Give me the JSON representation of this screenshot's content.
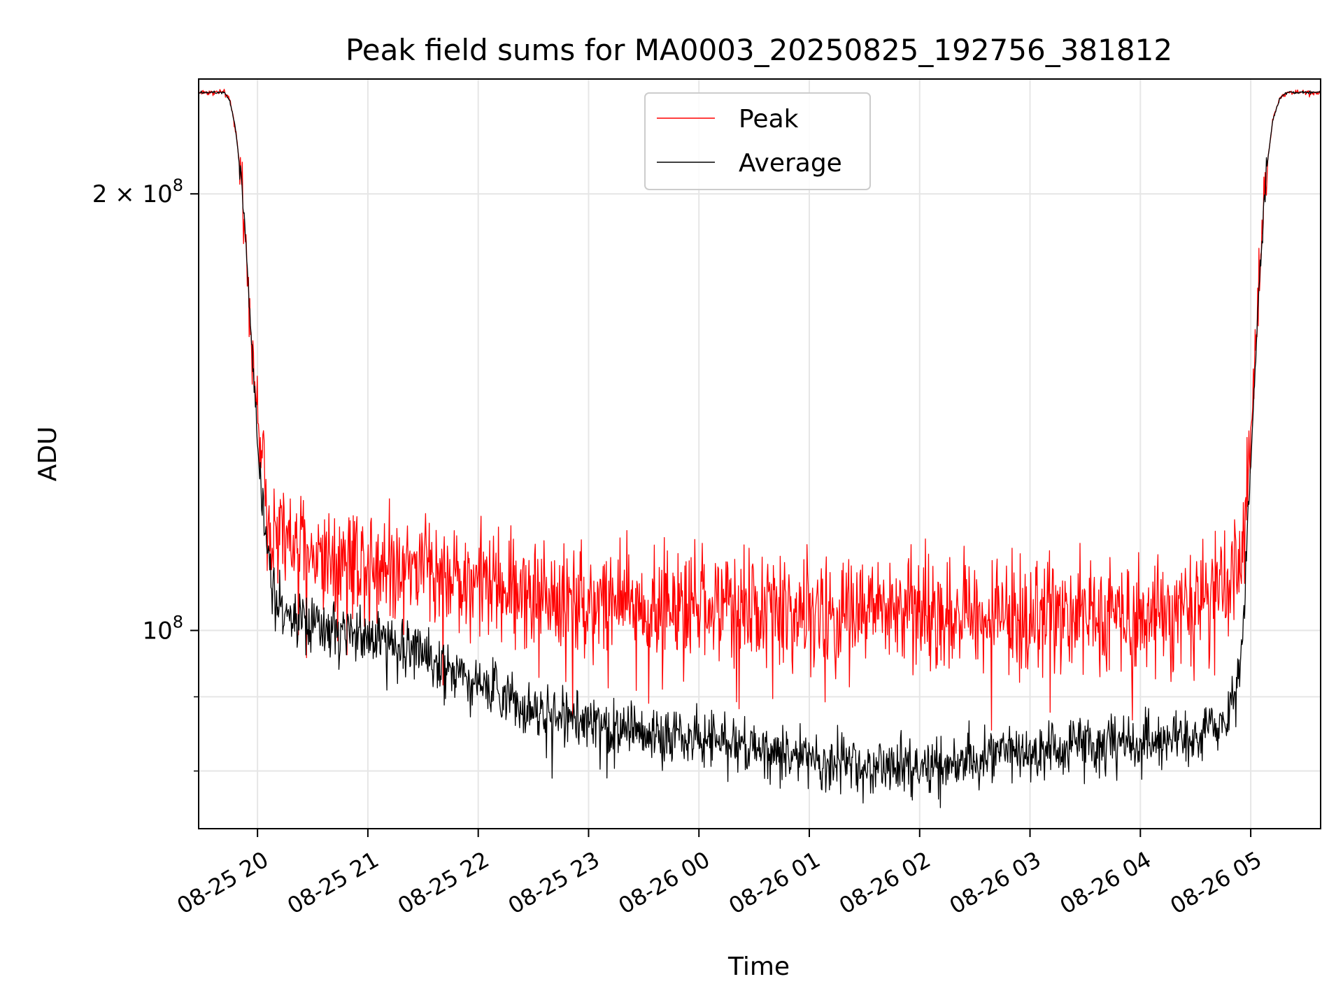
{
  "chart_data": {
    "type": "line",
    "title": "Peak field sums for MA0003_20250825_192756_381812",
    "xlabel": "Time",
    "ylabel": "ADU",
    "y_scale": "log",
    "ylim": [
      73000000,
      240000000
    ],
    "xlim": [
      "2025-08-25 19:28",
      "2025-08-26 05:38"
    ],
    "grid": true,
    "legend_position": "upper center",
    "x_ticks": [
      {
        "value": "2025-08-25 20:00",
        "label": "08-25 20"
      },
      {
        "value": "2025-08-25 21:00",
        "label": "08-25 21"
      },
      {
        "value": "2025-08-25 22:00",
        "label": "08-25 22"
      },
      {
        "value": "2025-08-25 23:00",
        "label": "08-25 23"
      },
      {
        "value": "2025-08-26 00:00",
        "label": "08-26 00"
      },
      {
        "value": "2025-08-26 01:00",
        "label": "08-26 01"
      },
      {
        "value": "2025-08-26 02:00",
        "label": "08-26 02"
      },
      {
        "value": "2025-08-26 03:00",
        "label": "08-26 03"
      },
      {
        "value": "2025-08-26 04:00",
        "label": "08-26 04"
      },
      {
        "value": "2025-08-26 05:00",
        "label": "08-26 05"
      }
    ],
    "y_major_ticks": [
      {
        "value": 100000000,
        "base": "10",
        "exp": "8"
      },
      {
        "value": 200000000,
        "mantissa": "2",
        "times": "×",
        "base": "10",
        "exp": "8"
      }
    ],
    "y_minor_ticks": [
      80000000,
      90000000
    ],
    "series": [
      {
        "name": "Peak",
        "color": "#ff0000",
        "noise": 0.045,
        "x": [
          "2025-08-25 19:28",
          "2025-08-25 19:36",
          "2025-08-25 19:42",
          "2025-08-25 19:45",
          "2025-08-25 19:48",
          "2025-08-25 19:52",
          "2025-08-25 19:56",
          "2025-08-25 20:00",
          "2025-08-25 20:04",
          "2025-08-25 20:08",
          "2025-08-25 20:15",
          "2025-08-25 20:30",
          "2025-08-25 21:00",
          "2025-08-25 21:30",
          "2025-08-25 22:00",
          "2025-08-25 22:30",
          "2025-08-25 23:00",
          "2025-08-25 23:30",
          "2025-08-26 00:00",
          "2025-08-26 01:00",
          "2025-08-26 02:00",
          "2025-08-26 03:00",
          "2025-08-26 04:00",
          "2025-08-26 04:30",
          "2025-08-26 04:45",
          "2025-08-26 04:52",
          "2025-08-26 04:56",
          "2025-08-26 05:00",
          "2025-08-26 05:04",
          "2025-08-26 05:08",
          "2025-08-26 05:12",
          "2025-08-26 05:16",
          "2025-08-26 05:20",
          "2025-08-26 05:38"
        ],
        "y": [
          235000000,
          235000000,
          235000000,
          232000000,
          222000000,
          200000000,
          165000000,
          140000000,
          125000000,
          118000000,
          115000000,
          113000000,
          112000000,
          111000000,
          108000000,
          106000000,
          105000000,
          104000000,
          104000000,
          103000000,
          103000000,
          103000000,
          103000000,
          104000000,
          105000000,
          108000000,
          115000000,
          135000000,
          170000000,
          205000000,
          225000000,
          233000000,
          235000000,
          235000000
        ]
      },
      {
        "name": "Average",
        "color": "#000000",
        "noise": 0.022,
        "x": [
          "2025-08-25 19:28",
          "2025-08-25 19:36",
          "2025-08-25 19:42",
          "2025-08-25 19:45",
          "2025-08-25 19:48",
          "2025-08-25 19:52",
          "2025-08-25 19:56",
          "2025-08-25 20:00",
          "2025-08-25 20:04",
          "2025-08-25 20:08",
          "2025-08-25 20:15",
          "2025-08-25 20:30",
          "2025-08-25 21:00",
          "2025-08-25 21:30",
          "2025-08-25 22:00",
          "2025-08-25 22:30",
          "2025-08-25 23:00",
          "2025-08-25 23:30",
          "2025-08-26 00:00",
          "2025-08-26 00:30",
          "2025-08-26 01:00",
          "2025-08-26 01:30",
          "2025-08-26 02:00",
          "2025-08-26 02:30",
          "2025-08-26 03:00",
          "2025-08-26 03:30",
          "2025-08-26 04:00",
          "2025-08-26 04:30",
          "2025-08-26 04:45",
          "2025-08-26 04:52",
          "2025-08-26 04:56",
          "2025-08-26 05:00",
          "2025-08-26 05:04",
          "2025-08-26 05:08",
          "2025-08-26 05:12",
          "2025-08-26 05:16",
          "2025-08-26 05:20",
          "2025-08-26 05:38"
        ],
        "y": [
          235000000,
          235000000,
          235000000,
          232000000,
          222000000,
          200000000,
          165000000,
          135000000,
          118000000,
          108000000,
          103000000,
          100000000,
          99000000,
          97000000,
          92000000,
          88000000,
          86000000,
          85000000,
          84500000,
          83000000,
          81500000,
          80500000,
          80500000,
          81500000,
          82500000,
          83500000,
          83500000,
          84500000,
          87000000,
          90000000,
          100000000,
          130000000,
          168000000,
          205000000,
          225000000,
          233000000,
          235000000,
          235000000
        ]
      }
    ]
  }
}
